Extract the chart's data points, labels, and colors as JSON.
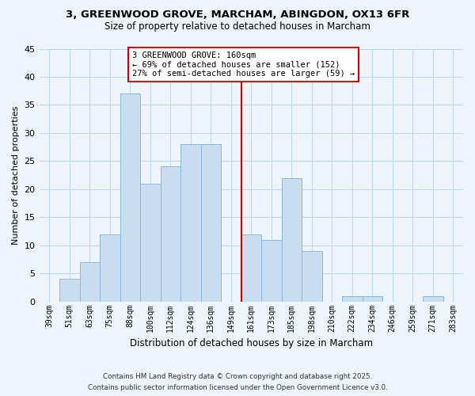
{
  "title1": "3, GREENWOOD GROVE, MARCHAM, ABINGDON, OX13 6FR",
  "title2": "Size of property relative to detached houses in Marcham",
  "xlabel": "Distribution of detached houses by size in Marcham",
  "ylabel": "Number of detached properties",
  "bar_labels": [
    "39sqm",
    "51sqm",
    "63sqm",
    "75sqm",
    "88sqm",
    "100sqm",
    "112sqm",
    "124sqm",
    "136sqm",
    "149sqm",
    "161sqm",
    "173sqm",
    "185sqm",
    "198sqm",
    "210sqm",
    "222sqm",
    "234sqm",
    "246sqm",
    "259sqm",
    "271sqm",
    "283sqm"
  ],
  "bar_values": [
    0,
    4,
    7,
    12,
    37,
    21,
    24,
    28,
    28,
    0,
    12,
    11,
    22,
    9,
    0,
    1,
    1,
    0,
    0,
    1,
    0
  ],
  "bar_color": "#c8ddf0",
  "bar_edge_color": "#8ab8d8",
  "grid_color": "#c0d8ee",
  "reference_line_color": "#cc0000",
  "annotation_title": "3 GREENWOOD GROVE: 160sqm",
  "annotation_line1": "← 69% of detached houses are smaller (152)",
  "annotation_line2": "27% of semi-detached houses are larger (59) →",
  "annotation_box_color": "#ffffff",
  "annotation_box_edge": "#cc0000",
  "ylim": [
    0,
    45
  ],
  "yticks": [
    0,
    5,
    10,
    15,
    20,
    25,
    30,
    35,
    40,
    45
  ],
  "footer1": "Contains HM Land Registry data © Crown copyright and database right 2025.",
  "footer2": "Contains public sector information licensed under the Open Government Licence v3.0.",
  "bg_color": "#eef4fb"
}
